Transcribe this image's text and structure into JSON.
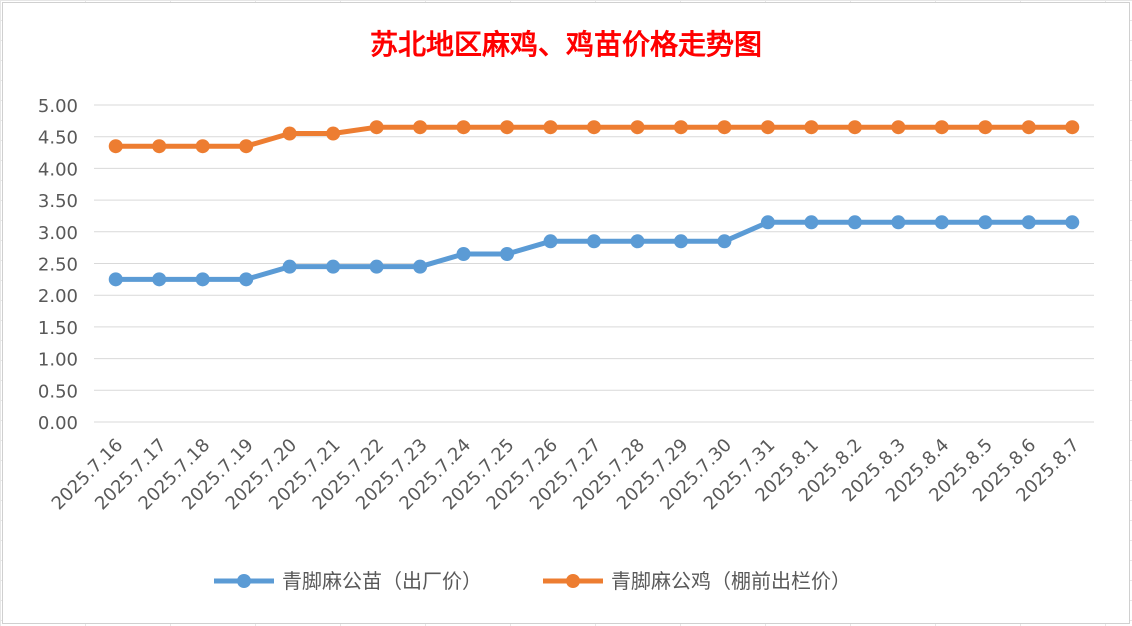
{
  "chart_data": {
    "type": "line",
    "title": "苏北地区麻鸡、鸡苗价格走势图",
    "xlabel": "",
    "ylabel": "",
    "ylim": [
      0,
      5
    ],
    "y_ticks": [
      "0.00",
      "0.50",
      "1.00",
      "1.50",
      "2.00",
      "2.50",
      "3.00",
      "3.50",
      "4.00",
      "4.50",
      "5.00"
    ],
    "grid": "horizontal",
    "legend_position": "bottom",
    "categories": [
      "2025.7.16",
      "2025.7.17",
      "2025.7.18",
      "2025.7.19",
      "2025.7.20",
      "2025.7.21",
      "2025.7.22",
      "2025.7.23",
      "2025.7.24",
      "2025.7.25",
      "2025.7.26",
      "2025.7.27",
      "2025.7.28",
      "2025.7.29",
      "2025.7.30",
      "2025.7.31",
      "2025.8.1",
      "2025.8.2",
      "2025.8.3",
      "2025.8.4",
      "2025.8.5",
      "2025.8.6",
      "2025.8.7"
    ],
    "series": [
      {
        "name": "青脚麻公苗（出厂价）",
        "color": "#5b9bd5",
        "values": [
          2.25,
          2.25,
          2.25,
          2.25,
          2.45,
          2.45,
          2.45,
          2.45,
          2.65,
          2.65,
          2.85,
          2.85,
          2.85,
          2.85,
          2.85,
          3.15,
          3.15,
          3.15,
          3.15,
          3.15,
          3.15,
          3.15,
          3.15
        ]
      },
      {
        "name": "青脚麻公鸡（棚前出栏价）",
        "color": "#ed7d31",
        "values": [
          4.35,
          4.35,
          4.35,
          4.35,
          4.55,
          4.55,
          4.65,
          4.65,
          4.65,
          4.65,
          4.65,
          4.65,
          4.65,
          4.65,
          4.65,
          4.65,
          4.65,
          4.65,
          4.65,
          4.65,
          4.65,
          4.65,
          4.65
        ]
      }
    ]
  }
}
